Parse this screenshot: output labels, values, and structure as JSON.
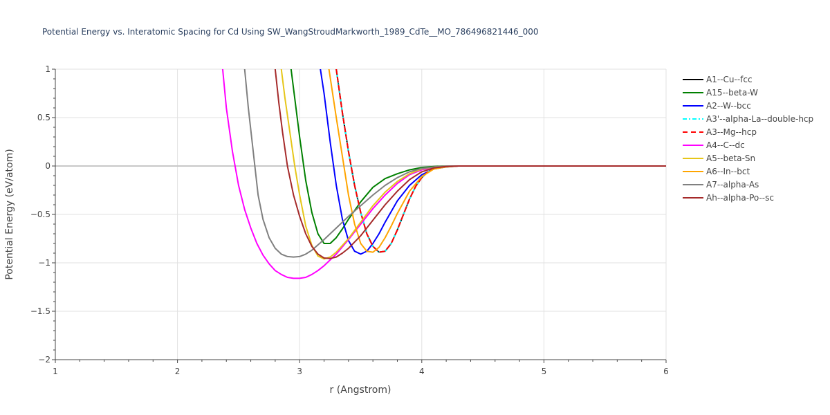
{
  "chart_data": {
    "type": "line",
    "title": "Potential Energy vs. Interatomic Spacing for Cd Using SW_WangStroudMarkworth_1989_CdTe__MO_786496821446_000",
    "xlabel": "r (Angstrom)",
    "ylabel": "Potential Energy (eV/atom)",
    "xlim": [
      1,
      6
    ],
    "ylim": [
      -2,
      1
    ],
    "x_ticks": [
      1,
      2,
      3,
      4,
      5,
      6
    ],
    "x_tick_labels": [
      "1",
      "2",
      "3",
      "4",
      "5",
      "6"
    ],
    "y_ticks": [
      1,
      0.5,
      0,
      -0.5,
      -1,
      -1.5,
      -2
    ],
    "y_tick_labels": [
      "1",
      "0.5",
      "0",
      "−0.5",
      "−1",
      "−1.5",
      "−2"
    ],
    "grid": true,
    "legend_position": "right",
    "series": [
      {
        "name": "A1--Cu--fcc",
        "color": "#000000",
        "dash": "solid",
        "x": [
          3.3,
          3.35,
          3.4,
          3.45,
          3.5,
          3.55,
          3.6,
          3.65,
          3.7,
          3.75,
          3.8,
          3.85,
          3.9,
          3.95,
          4.0,
          4.05,
          4.1,
          4.15,
          4.2,
          4.25,
          4.3,
          4.4,
          6.0
        ],
        "y": [
          1.0,
          0.55,
          0.15,
          -0.2,
          -0.48,
          -0.7,
          -0.83,
          -0.89,
          -0.88,
          -0.8,
          -0.66,
          -0.5,
          -0.34,
          -0.21,
          -0.12,
          -0.06,
          -0.03,
          -0.01,
          0.0,
          0.0,
          0.0,
          0.0,
          0.0
        ]
      },
      {
        "name": "A15--beta-W",
        "color": "#008000",
        "dash": "solid",
        "x": [
          2.93,
          2.97,
          3.0,
          3.05,
          3.1,
          3.15,
          3.2,
          3.25,
          3.3,
          3.35,
          3.4,
          3.5,
          3.6,
          3.7,
          3.8,
          3.9,
          4.0,
          4.1,
          4.2,
          4.3,
          4.4,
          6.0
        ],
        "y": [
          1.0,
          0.6,
          0.3,
          -0.15,
          -0.48,
          -0.7,
          -0.8,
          -0.8,
          -0.74,
          -0.65,
          -0.55,
          -0.37,
          -0.22,
          -0.13,
          -0.08,
          -0.04,
          -0.015,
          -0.005,
          0.0,
          0.0,
          0.0,
          0.0
        ]
      },
      {
        "name": "A2--W--bcc",
        "color": "#0000ff",
        "dash": "solid",
        "x": [
          3.17,
          3.2,
          3.25,
          3.3,
          3.35,
          3.4,
          3.45,
          3.5,
          3.55,
          3.6,
          3.65,
          3.7,
          3.8,
          3.9,
          4.0,
          4.1,
          4.2,
          4.3,
          4.4,
          6.0
        ],
        "y": [
          1.0,
          0.75,
          0.25,
          -0.2,
          -0.55,
          -0.77,
          -0.88,
          -0.91,
          -0.88,
          -0.8,
          -0.7,
          -0.58,
          -0.36,
          -0.2,
          -0.09,
          -0.03,
          -0.01,
          0.0,
          0.0,
          0.0
        ]
      },
      {
        "name": "A3'--alpha-La--double-hcp",
        "color": "#00ffff",
        "dash": "6,3,2,3",
        "x": [
          3.3,
          3.35,
          3.4,
          3.45,
          3.5,
          3.55,
          3.6,
          3.65,
          3.7,
          3.75,
          3.8,
          3.85,
          3.9,
          3.95,
          4.0,
          4.05,
          4.1,
          4.15,
          4.2,
          4.25,
          4.3,
          4.4,
          6.0
        ],
        "y": [
          1.0,
          0.55,
          0.15,
          -0.2,
          -0.48,
          -0.7,
          -0.83,
          -0.89,
          -0.88,
          -0.8,
          -0.66,
          -0.5,
          -0.34,
          -0.21,
          -0.12,
          -0.06,
          -0.03,
          -0.01,
          0.0,
          0.0,
          0.0,
          0.0,
          0.0
        ]
      },
      {
        "name": "A3--Mg--hcp",
        "color": "#ff0000",
        "dash": "7,5",
        "x": [
          3.3,
          3.35,
          3.4,
          3.45,
          3.5,
          3.55,
          3.6,
          3.65,
          3.7,
          3.75,
          3.8,
          3.85,
          3.9,
          3.95,
          4.0,
          4.05,
          4.1,
          4.15,
          4.2,
          4.25,
          4.3,
          4.4,
          6.0
        ],
        "y": [
          1.0,
          0.55,
          0.15,
          -0.2,
          -0.48,
          -0.7,
          -0.83,
          -0.89,
          -0.88,
          -0.8,
          -0.66,
          -0.5,
          -0.34,
          -0.21,
          -0.12,
          -0.06,
          -0.03,
          -0.01,
          0.0,
          0.0,
          0.0,
          0.0,
          0.0
        ]
      },
      {
        "name": "A4--C--dc",
        "color": "#ff00ff",
        "dash": "solid",
        "x": [
          2.37,
          2.4,
          2.45,
          2.5,
          2.55,
          2.6,
          2.65,
          2.7,
          2.75,
          2.8,
          2.85,
          2.9,
          2.95,
          3.0,
          3.05,
          3.1,
          3.15,
          3.2,
          3.3,
          3.4,
          3.5,
          3.6,
          3.7,
          3.8,
          3.9,
          4.0,
          4.1,
          4.2,
          4.3,
          4.4,
          6.0
        ],
        "y": [
          1.0,
          0.6,
          0.15,
          -0.2,
          -0.45,
          -0.64,
          -0.8,
          -0.92,
          -1.01,
          -1.08,
          -1.12,
          -1.15,
          -1.16,
          -1.16,
          -1.15,
          -1.12,
          -1.08,
          -1.03,
          -0.91,
          -0.76,
          -0.6,
          -0.44,
          -0.3,
          -0.18,
          -0.09,
          -0.04,
          -0.015,
          -0.005,
          0.0,
          0.0,
          0.0
        ]
      },
      {
        "name": "A5--beta-Sn",
        "color": "#e6c619",
        "dash": "solid",
        "x": [
          2.85,
          2.88,
          2.92,
          2.96,
          3.0,
          3.05,
          3.1,
          3.15,
          3.2,
          3.25,
          3.3,
          3.4,
          3.5,
          3.6,
          3.7,
          3.8,
          3.9,
          4.0,
          4.1,
          4.2,
          4.3,
          4.4,
          6.0
        ],
        "y": [
          1.0,
          0.7,
          0.35,
          0.0,
          -0.3,
          -0.62,
          -0.82,
          -0.93,
          -0.96,
          -0.94,
          -0.89,
          -0.75,
          -0.58,
          -0.41,
          -0.27,
          -0.16,
          -0.08,
          -0.03,
          -0.01,
          0.0,
          0.0,
          0.0,
          0.0
        ]
      },
      {
        "name": "A6--In--bct",
        "color": "#ffa500",
        "dash": "solid",
        "x": [
          3.24,
          3.27,
          3.3,
          3.35,
          3.4,
          3.45,
          3.5,
          3.55,
          3.6,
          3.65,
          3.7,
          3.75,
          3.8,
          3.9,
          4.0,
          4.1,
          4.2,
          4.3,
          4.4,
          6.0
        ],
        "y": [
          1.0,
          0.75,
          0.5,
          0.1,
          -0.3,
          -0.6,
          -0.8,
          -0.88,
          -0.89,
          -0.84,
          -0.74,
          -0.62,
          -0.49,
          -0.26,
          -0.11,
          -0.03,
          -0.01,
          0.0,
          0.0,
          0.0
        ]
      },
      {
        "name": "A7--alpha-As",
        "color": "#808080",
        "dash": "solid",
        "x": [
          2.55,
          2.58,
          2.62,
          2.66,
          2.7,
          2.75,
          2.8,
          2.85,
          2.9,
          2.95,
          3.0,
          3.05,
          3.1,
          3.2,
          3.3,
          3.4,
          3.5,
          3.6,
          3.7,
          3.8,
          3.9,
          4.0,
          4.1,
          4.2,
          4.3,
          4.4,
          6.0
        ],
        "y": [
          1.0,
          0.6,
          0.15,
          -0.3,
          -0.55,
          -0.74,
          -0.85,
          -0.91,
          -0.935,
          -0.94,
          -0.935,
          -0.91,
          -0.87,
          -0.76,
          -0.64,
          -0.52,
          -0.41,
          -0.3,
          -0.2,
          -0.12,
          -0.06,
          -0.025,
          -0.01,
          0.0,
          0.0,
          0.0,
          0.0
        ]
      },
      {
        "name": "Ah--alpha-Po--sc",
        "color": "#a52a2a",
        "dash": "solid",
        "x": [
          2.8,
          2.83,
          2.86,
          2.9,
          2.95,
          3.0,
          3.05,
          3.1,
          3.15,
          3.2,
          3.25,
          3.3,
          3.35,
          3.4,
          3.5,
          3.6,
          3.7,
          3.8,
          3.9,
          4.0,
          4.1,
          4.2,
          4.3,
          4.4,
          6.0
        ],
        "y": [
          1.0,
          0.65,
          0.35,
          0.0,
          -0.3,
          -0.52,
          -0.7,
          -0.83,
          -0.91,
          -0.95,
          -0.955,
          -0.94,
          -0.9,
          -0.85,
          -0.72,
          -0.56,
          -0.4,
          -0.26,
          -0.14,
          -0.06,
          -0.02,
          -0.005,
          0.0,
          0.0,
          0.0
        ]
      }
    ]
  }
}
